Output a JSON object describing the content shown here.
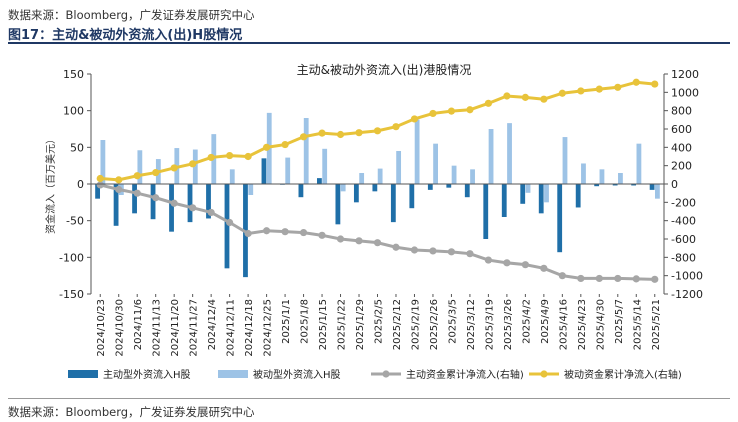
{
  "header": {
    "source": "数据来源：Bloomberg，广发证券发展研究中心",
    "figure_title": "图17：主动&被动外资流入(出)H股情况"
  },
  "footer": {
    "source": "数据来源：Bloomberg，广发证券发展研究中心"
  },
  "chart_data": {
    "type": "bar",
    "title": "主动&被动外资流入(出)港股情况",
    "ylabel_left": "资金流入（百万美元）",
    "ylim_left": [
      -150,
      150
    ],
    "yticks_left": [
      "150",
      "100",
      "50",
      "0",
      "-50",
      "-100",
      "-150"
    ],
    "ylim_right": [
      -1200,
      1200
    ],
    "yticks_right": [
      "1200",
      "1000",
      "800",
      "600",
      "400",
      "200",
      "0",
      "-200",
      "-400",
      "-600",
      "-800",
      "-1000",
      "-1200"
    ],
    "categories": [
      "2024/10/23",
      "2024/10/30",
      "2024/11/6",
      "2024/11/13",
      "2024/11/20",
      "2024/11/27",
      "2024/12/4",
      "2024/12/11",
      "2024/12/18",
      "2024/12/25",
      "2025/1/1",
      "2025/1/8",
      "2025/1/15",
      "2025/1/22",
      "2025/1/29",
      "2025/2/5",
      "2025/2/12",
      "2025/2/19",
      "2025/2/26",
      "2025/3/5",
      "2025/3/12",
      "2025/3/19",
      "2025/3/26",
      "2025/4/2",
      "2025/4/9",
      "2025/4/16",
      "2025/4/23",
      "2025/4/30",
      "2025/5/7",
      "2025/5/14",
      "2025/5/21"
    ],
    "series": [
      {
        "name": "主动型外资流入H股",
        "kind": "bar",
        "axis": "left",
        "color": "#1f6fa8",
        "values": [
          -20,
          -57,
          -40,
          -48,
          -65,
          -52,
          -47,
          -115,
          -127,
          35,
          -1,
          -18,
          8,
          -55,
          -25,
          -10,
          -52,
          -33,
          -8,
          -5,
          -18,
          -75,
          -45,
          -27,
          -40,
          -93,
          -32,
          -3,
          -2,
          -2,
          -8
        ]
      },
      {
        "name": "被动型外资流入H股",
        "kind": "bar",
        "axis": "left",
        "color": "#9dc3e6",
        "values": [
          60,
          -15,
          46,
          34,
          49,
          47,
          68,
          20,
          -15,
          97,
          36,
          90,
          48,
          -10,
          15,
          21,
          45,
          88,
          55,
          25,
          20,
          75,
          83,
          -12,
          -25,
          64,
          28,
          20,
          15,
          55,
          -20
        ]
      },
      {
        "name": "主动资金累计净流入(右轴)",
        "kind": "line",
        "axis": "right",
        "color": "#a6a6a6",
        "values": [
          -10,
          -60,
          -100,
          -150,
          -210,
          -260,
          -310,
          -420,
          -540,
          -510,
          -520,
          -530,
          -560,
          -600,
          -620,
          -640,
          -690,
          -720,
          -730,
          -740,
          -760,
          -830,
          -860,
          -880,
          -920,
          -1000,
          -1030,
          -1030,
          -1030,
          -1035,
          -1040
        ]
      },
      {
        "name": "被动资金累计净流入(右轴)",
        "kind": "line",
        "axis": "right",
        "color": "#e8c33a",
        "values": [
          60,
          45,
          90,
          125,
          175,
          220,
          290,
          310,
          300,
          400,
          430,
          515,
          555,
          540,
          560,
          580,
          625,
          710,
          770,
          795,
          810,
          880,
          960,
          945,
          925,
          990,
          1015,
          1035,
          1055,
          1110,
          1090
        ]
      }
    ],
    "grid": false,
    "legend_position": "bottom"
  }
}
